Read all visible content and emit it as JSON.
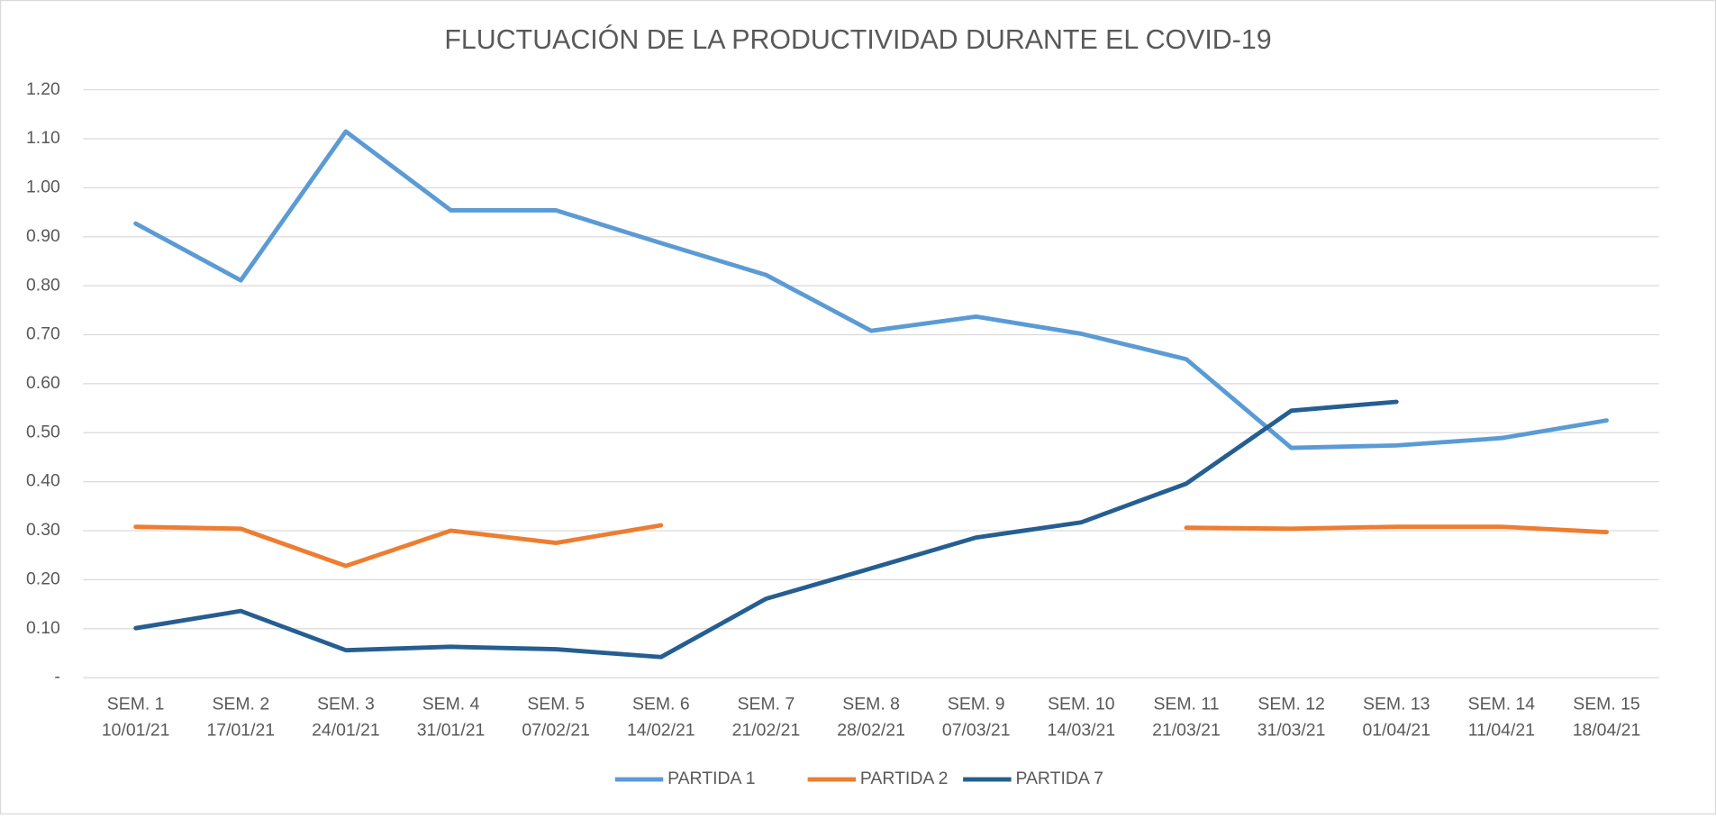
{
  "chart_data": {
    "type": "line",
    "title": "FLUCTUACIÓN DE LA PRODUCTIVIDAD DURANTE EL COVID-19",
    "categories": [
      [
        "SEM. 1",
        "10/01/21"
      ],
      [
        "SEM. 2",
        "17/01/21"
      ],
      [
        "SEM. 3",
        "24/01/21"
      ],
      [
        "SEM. 4",
        "31/01/21"
      ],
      [
        "SEM. 5",
        "07/02/21"
      ],
      [
        "SEM. 6",
        "14/02/21"
      ],
      [
        "SEM. 7",
        "21/02/21"
      ],
      [
        "SEM. 8",
        "28/02/21"
      ],
      [
        "SEM. 9",
        "07/03/21"
      ],
      [
        "SEM. 10",
        "14/03/21"
      ],
      [
        "SEM. 11",
        "21/03/21"
      ],
      [
        "SEM. 12",
        "31/03/21"
      ],
      [
        "SEM. 13",
        "01/04/21"
      ],
      [
        "SEM. 14",
        "11/04/21"
      ],
      [
        "SEM. 15",
        "18/04/21"
      ]
    ],
    "series": [
      {
        "name": "PARTIDA 1",
        "color": "#5b9bd5",
        "values": [
          0.927,
          0.811,
          1.115,
          0.954,
          0.954,
          0.887,
          0.822,
          0.708,
          0.737,
          0.702,
          0.65,
          0.469,
          0.474,
          0.489,
          0.525
        ]
      },
      {
        "name": "PARTIDA 2",
        "color": "#ed7d31",
        "values": [
          0.308,
          0.304,
          0.228,
          0.3,
          0.275,
          0.311,
          null,
          null,
          null,
          null,
          0.306,
          0.304,
          0.308,
          0.308,
          0.297
        ]
      },
      {
        "name": "PARTIDA 7",
        "color": "#255e91",
        "values": [
          0.101,
          0.136,
          0.056,
          0.063,
          0.058,
          0.042,
          0.161,
          0.223,
          0.286,
          0.317,
          0.396,
          0.545,
          0.563,
          null,
          null
        ]
      }
    ],
    "ylim": [
      0,
      1.2
    ],
    "yticks": [
      {
        "value": 0,
        "label": "-"
      },
      {
        "value": 0.1,
        "label": "0.10"
      },
      {
        "value": 0.2,
        "label": "0.20"
      },
      {
        "value": 0.3,
        "label": "0.30"
      },
      {
        "value": 0.4,
        "label": "0.40"
      },
      {
        "value": 0.5,
        "label": "0.50"
      },
      {
        "value": 0.6,
        "label": "0.60"
      },
      {
        "value": 0.7,
        "label": "0.70"
      },
      {
        "value": 0.8,
        "label": "0.80"
      },
      {
        "value": 0.9,
        "label": "0.90"
      },
      {
        "value": 1.0,
        "label": "1.00"
      },
      {
        "value": 1.1,
        "label": "1.10"
      },
      {
        "value": 1.2,
        "label": "1.20"
      }
    ],
    "grid": true,
    "legend": "bottom"
  }
}
